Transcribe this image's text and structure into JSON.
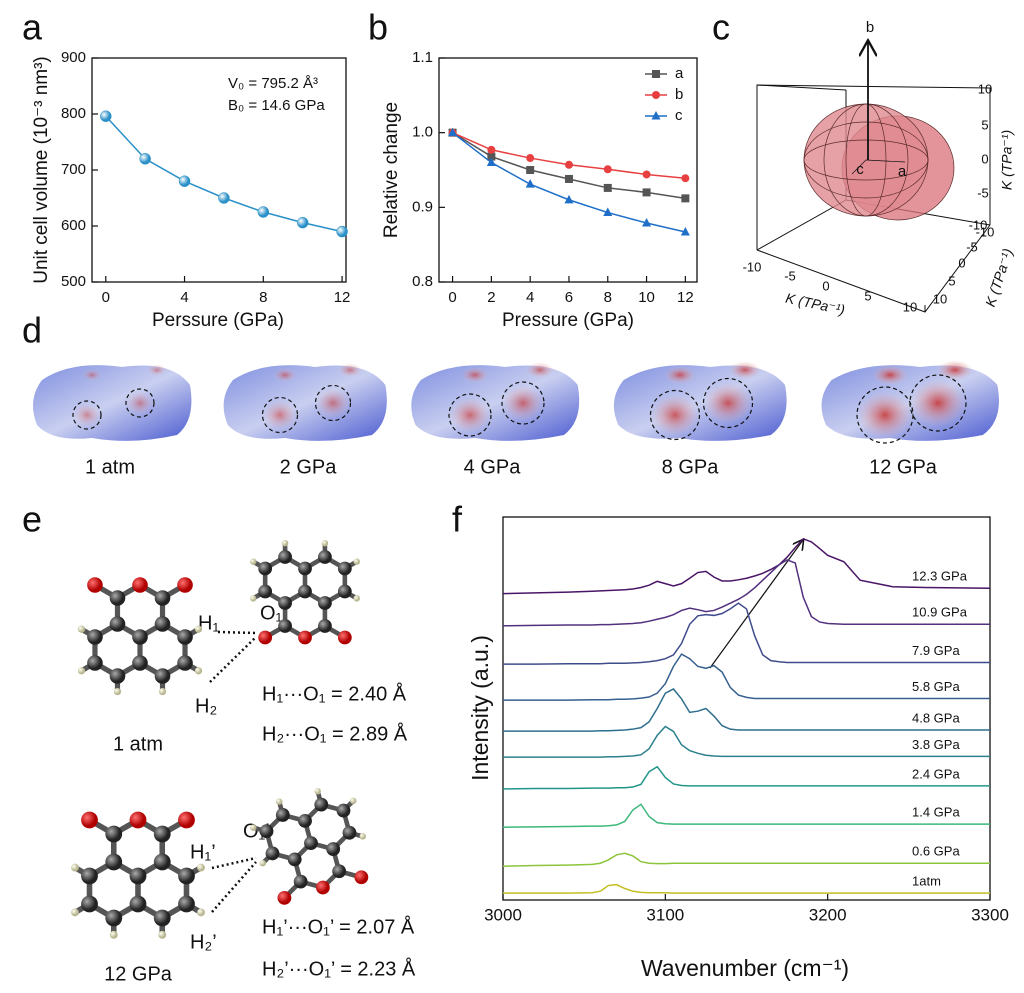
{
  "chart_data": [
    {
      "type": "line",
      "label": "a",
      "x": [
        0,
        2,
        4,
        6,
        8,
        10,
        12
      ],
      "values": [
        796,
        720,
        680,
        650,
        625,
        606,
        590
      ],
      "color": "#2a90c8",
      "marker": "sphere",
      "xlim": [
        -0.7,
        12.2
      ],
      "ylim": [
        500,
        900
      ],
      "xticks": [
        0,
        4,
        8,
        12
      ],
      "yticks": [
        500,
        600,
        700,
        800,
        900
      ],
      "xlabel": "Perssure (GPa)",
      "ylabel": "Unit cell volume (10⁻³ nm³)",
      "annotations": [
        "V₀ = 795.2 Å³",
        "B₀ = 14.6 GPa"
      ]
    },
    {
      "type": "line",
      "label": "b",
      "x": [
        0,
        2,
        4,
        6,
        8,
        10,
        12
      ],
      "series": [
        {
          "name": "a",
          "color": "#555555",
          "marker": "square",
          "values": [
            1.0,
            0.968,
            0.95,
            0.938,
            0.926,
            0.92,
            0.912
          ]
        },
        {
          "name": "b",
          "color": "#e84040",
          "marker": "circle",
          "values": [
            1.0,
            0.977,
            0.966,
            0.957,
            0.951,
            0.944,
            0.939
          ]
        },
        {
          "name": "c",
          "color": "#1f6fc8",
          "marker": "triangle",
          "values": [
            1.0,
            0.96,
            0.931,
            0.91,
            0.893,
            0.879,
            0.867
          ]
        }
      ],
      "xlim": [
        -0.7,
        12.6
      ],
      "ylim": [
        0.8,
        1.1
      ],
      "xticks": [
        0,
        2,
        4,
        6,
        8,
        10,
        12
      ],
      "yticks": [
        0.8,
        0.9,
        {
          "value": 1.0,
          "label": "1.0"
        },
        1.1
      ],
      "xlabel": "Pressure (GPa)",
      "ylabel": "Relative change",
      "legend": "upper right"
    },
    {
      "type": "line",
      "label": "f",
      "x": [
        3000,
        3020,
        3040,
        3055,
        3060,
        3065,
        3070,
        3075,
        3080,
        3085,
        3090,
        3095,
        3100,
        3105,
        3110,
        3115,
        3120,
        3125,
        3130,
        3135,
        3140,
        3145,
        3150,
        3155,
        3160,
        3165,
        3170,
        3175,
        3180,
        3185,
        3190,
        3195,
        3200,
        3210,
        3220,
        3240,
        3260,
        3280,
        3300
      ],
      "series": [
        {
          "name": "12.3 GPa",
          "color": "#4a1566",
          "values": [
            80.0,
            80.2,
            80.4,
            80.6,
            80.7,
            80.8,
            80.9,
            81.0,
            81.2,
            81.6,
            82.2,
            83.2,
            82.6,
            82.0,
            82.6,
            84.0,
            85.5,
            85.8,
            84.3,
            83.3,
            83.3,
            83.6,
            84.0,
            84.6,
            85.3,
            86.3,
            87.5,
            89.5,
            92.0,
            94.3,
            93.5,
            91.8,
            90.0,
            88.3,
            83.5,
            81.8,
            81.6,
            81.5,
            81.4
          ]
        },
        {
          "name": "10.9 GPa",
          "color": "#52307e",
          "values": [
            71.6,
            71.7,
            71.8,
            71.8,
            71.9,
            71.9,
            72.0,
            72.1,
            72.2,
            72.4,
            72.8,
            73.3,
            73.8,
            74.5,
            75.6,
            76.2,
            75.8,
            75.3,
            75.6,
            76.5,
            77.5,
            78.5,
            79.8,
            81.5,
            83.5,
            85.5,
            87.5,
            88.8,
            88.0,
            79.0,
            74.0,
            72.6,
            72.2,
            72.0,
            72.0,
            72.0,
            72.0,
            72.0,
            72.0
          ]
        },
        {
          "name": "7.9 GPa",
          "color": "#3f4c8c",
          "values": [
            61.6,
            61.6,
            61.7,
            61.7,
            61.7,
            61.8,
            61.8,
            61.8,
            61.9,
            62.0,
            62.2,
            62.5,
            63.0,
            64.0,
            67.0,
            72.0,
            74.2,
            74.5,
            74.3,
            74.8,
            76.0,
            77.5,
            76.0,
            69.0,
            64.0,
            62.5,
            62.2,
            62.0,
            62.0,
            62.0,
            62.0,
            62.0,
            62.0,
            62.0,
            62.0,
            62.0,
            62.0,
            62.0,
            62.0
          ]
        },
        {
          "name": "5.8 GPa",
          "color": "#37608f",
          "values": [
            52.2,
            52.2,
            52.2,
            52.3,
            52.3,
            52.3,
            52.4,
            52.4,
            52.5,
            52.7,
            53.0,
            54.0,
            56.5,
            61.0,
            64.2,
            63.0,
            61.0,
            60.5,
            61.2,
            59.5,
            55.5,
            53.5,
            52.9,
            52.6,
            52.6,
            52.6,
            52.6,
            52.6,
            52.6,
            52.6,
            52.6,
            52.6,
            52.6,
            52.6,
            52.6,
            52.6,
            52.6,
            52.6,
            52.6
          ]
        },
        {
          "name": "4.8 GPa",
          "color": "#2f6f8e",
          "values": [
            44.1,
            44.1,
            44.1,
            44.1,
            44.2,
            44.2,
            44.3,
            44.4,
            44.6,
            45.0,
            46.5,
            50.0,
            54.0,
            55.1,
            52.5,
            49.0,
            49.3,
            50.0,
            48.0,
            45.5,
            44.6,
            44.4,
            44.4,
            44.4,
            44.4,
            44.4,
            44.4,
            44.4,
            44.4,
            44.4,
            44.4,
            44.4,
            44.4,
            44.4,
            44.4,
            44.4,
            44.4,
            44.4,
            44.4
          ]
        },
        {
          "name": "3.8 GPa",
          "color": "#2a808c",
          "values": [
            37.3,
            37.3,
            37.3,
            37.3,
            37.3,
            37.4,
            37.4,
            37.5,
            37.6,
            37.9,
            39.5,
            43.0,
            45.3,
            44.0,
            40.5,
            39.0,
            38.3,
            37.8,
            37.6,
            37.5,
            37.5,
            37.5,
            37.5,
            37.5,
            37.5,
            37.5,
            37.5,
            37.5,
            37.5,
            37.5,
            37.5,
            37.5,
            37.5,
            37.5,
            37.5,
            37.5,
            37.5,
            37.5,
            37.5
          ]
        },
        {
          "name": "2.4 GPa",
          "color": "#23968a",
          "values": [
            29.0,
            29.1,
            29.1,
            29.2,
            29.2,
            29.2,
            29.3,
            29.3,
            29.5,
            30.2,
            33.5,
            34.8,
            32.0,
            30.3,
            29.9,
            29.8,
            29.8,
            29.8,
            29.8,
            29.8,
            29.8,
            29.8,
            29.8,
            29.8,
            29.8,
            29.8,
            29.8,
            29.8,
            29.8,
            29.8,
            29.8,
            29.8,
            29.8,
            29.8,
            29.8,
            29.8,
            29.8,
            29.8,
            29.8
          ]
        },
        {
          "name": "1.4 GPa",
          "color": "#3db87a",
          "values": [
            19.0,
            19.1,
            19.2,
            19.3,
            19.3,
            19.4,
            19.6,
            20.5,
            23.5,
            25.0,
            21.8,
            20.2,
            19.9,
            19.8,
            19.8,
            19.8,
            19.8,
            19.8,
            19.8,
            19.8,
            19.8,
            19.8,
            19.8,
            19.8,
            19.8,
            19.8,
            19.8,
            19.8,
            19.8,
            19.8,
            19.8,
            19.8,
            19.8,
            19.8,
            19.8,
            19.8,
            19.8,
            19.8,
            19.8
          ]
        },
        {
          "name": "0.6 GPa",
          "color": "#8cc43a",
          "values": [
            8.8,
            9.0,
            9.1,
            9.3,
            9.6,
            10.5,
            11.8,
            12.2,
            11.5,
            10.0,
            9.6,
            9.5,
            9.5,
            9.6,
            9.6,
            9.6,
            9.6,
            9.6,
            9.6,
            9.6,
            9.6,
            9.6,
            9.6,
            9.6,
            9.6,
            9.6,
            9.6,
            9.6,
            9.6,
            9.6,
            9.6,
            9.6,
            9.6,
            9.6,
            9.6,
            9.6,
            9.6,
            9.6,
            9.6
          ]
        },
        {
          "name": "1atm",
          "color": "#c4be23",
          "values": [
            1.8,
            1.8,
            1.8,
            1.9,
            2.3,
            3.8,
            4.0,
            3.0,
            2.3,
            2.0,
            1.9,
            1.9,
            1.9,
            1.8,
            1.8,
            1.8,
            1.8,
            1.8,
            1.8,
            1.8,
            1.8,
            1.8,
            1.8,
            1.8,
            1.8,
            1.8,
            1.8,
            1.8,
            1.8,
            1.8,
            1.8,
            1.8,
            1.8,
            1.8,
            1.8,
            1.8,
            1.8,
            1.8,
            1.8
          ]
        }
      ],
      "xlim": [
        3000,
        3300
      ],
      "ylim": [
        0,
        100
      ],
      "xticks": [
        3000,
        3100,
        3200,
        3300
      ],
      "xlabel": "Wavenumber (cm⁻¹)",
      "ylabel": "Intensity (a.u.)",
      "legend": "inline"
    }
  ],
  "figure": {
    "panel_c": {
      "label": "c",
      "axis_b": "b",
      "axis_a": "a",
      "axis_c": "c",
      "vertical_axis_label": "K (TPa⁻¹)",
      "x_axis_label": "K (TPa⁻¹)",
      "depth_axis_label": "K (TPa⁻¹)",
      "vertical_ticks": [
        10,
        5,
        0,
        -5,
        -10
      ],
      "x_ticks": [
        -10,
        -5,
        0,
        5,
        10
      ],
      "depth_ticks": [
        -10,
        -5,
        0,
        5,
        10
      ]
    },
    "panel_d": {
      "label": "d",
      "states": [
        "1 atm",
        "2 GPa",
        "4 GPa",
        "8 GPa",
        "12 GPa"
      ]
    },
    "panel_e": {
      "label": "e",
      "top": {
        "h1": "H₁",
        "o1": "O₁",
        "h2": "H₂",
        "state": "1 atm",
        "d1": "H₁···O₁ = 2.40 Å",
        "d2": "H₂···O₁ = 2.89 Å"
      },
      "bottom": {
        "h1": "H₁’",
        "o1": "O₁’",
        "h2": "H₂’",
        "state": "12 GPa",
        "d1": "H₁’···O₁’ = 2.07 Å",
        "d2": "H₂’···O₁’ = 2.23 Å"
      }
    }
  }
}
